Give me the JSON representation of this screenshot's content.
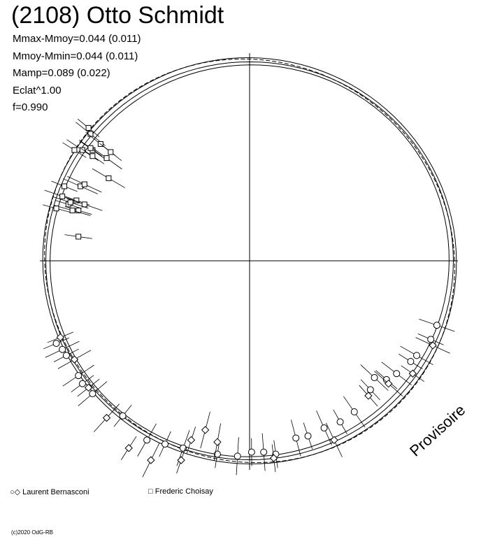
{
  "title": "(2108) Otto Schmidt",
  "stats": [
    "Mmax-Mmoy=0.044 (0.011)",
    "Mmoy-Mmin=0.044 (0.011)",
    "Mamp=0.089 (0.022)",
    "Eclat^1.00",
    "f=0.990"
  ],
  "legend": [
    {
      "symbols": "○◇",
      "label": "Laurent Bernasconi"
    },
    {
      "symbols": "□",
      "label": "Frederic Choisay"
    }
  ],
  "watermark": "Provisoire",
  "copyright": "(c)2020 OdG-RB",
  "chart_data": {
    "type": "scatter",
    "title": "(2108) Otto Schmidt",
    "xlabel": "",
    "ylabel": "",
    "polar": true,
    "grid": false,
    "legend_position": "bottom-left",
    "series": [
      {
        "name": "Laurent Bernasconi",
        "markers": [
          "circle",
          "diamond"
        ],
        "x": [
          -0.96,
          -0.93,
          -0.91,
          -0.85,
          -0.83,
          -0.78,
          -0.63,
          -0.51,
          -0.42,
          -0.33,
          -0.16,
          -0.06,
          0.01,
          0.07,
          0.13,
          0.23,
          0.29,
          0.37,
          0.45,
          0.52,
          0.6,
          0.62,
          0.68,
          0.73,
          0.8,
          0.83,
          0.9,
          0.93,
          -0.94,
          -0.87,
          -0.8,
          -0.71,
          -0.6,
          -0.49,
          -0.29,
          -0.22,
          -0.34,
          -0.16,
          0.12,
          0.42,
          0.59,
          0.69,
          0.81,
          0.91
        ],
        "y": [
          -0.41,
          -0.44,
          -0.47,
          -0.57,
          -0.61,
          -0.66,
          -0.77,
          -0.89,
          -0.91,
          -0.93,
          -0.96,
          -0.97,
          -0.95,
          -0.95,
          -0.96,
          -0.88,
          -0.87,
          -0.83,
          -0.8,
          -0.75,
          -0.64,
          -0.58,
          -0.59,
          -0.56,
          -0.5,
          -0.47,
          -0.39,
          -0.32,
          -0.38,
          -0.49,
          -0.63,
          -0.78,
          -0.93,
          -0.99,
          -0.89,
          -0.84,
          -0.99,
          -0.9,
          -0.98,
          -0.89,
          -0.67,
          -0.61,
          -0.56,
          -0.42
        ],
        "values_unit": "normalized radius"
      },
      {
        "name": "Frederic Choisay",
        "markers": [
          "square"
        ],
        "x": [
          -0.8,
          -0.79,
          -0.87,
          -0.83,
          -0.78,
          -0.74,
          -0.69,
          -0.71,
          -0.92,
          -0.84,
          -0.86,
          -0.82,
          -0.85,
          -0.88,
          -0.9,
          -0.93,
          -0.96,
          -0.89,
          -0.85,
          -0.82,
          -0.78,
          -0.7,
          -0.79
        ],
        "y": [
          0.66,
          0.63,
          0.55,
          0.55,
          0.55,
          0.58,
          0.54,
          0.51,
          0.37,
          0.37,
          0.3,
          0.28,
          0.25,
          0.25,
          0.28,
          0.32,
          0.26,
          0.29,
          0.12,
          0.38,
          0.52,
          0.41,
          0.56
        ],
        "values_unit": "normalized radius"
      }
    ],
    "curves": [
      {
        "name": "mean",
        "style": "solid"
      },
      {
        "name": "max",
        "style": "solid"
      },
      {
        "name": "min",
        "style": "solid"
      },
      {
        "name": "fit",
        "style": "dashed"
      }
    ]
  }
}
